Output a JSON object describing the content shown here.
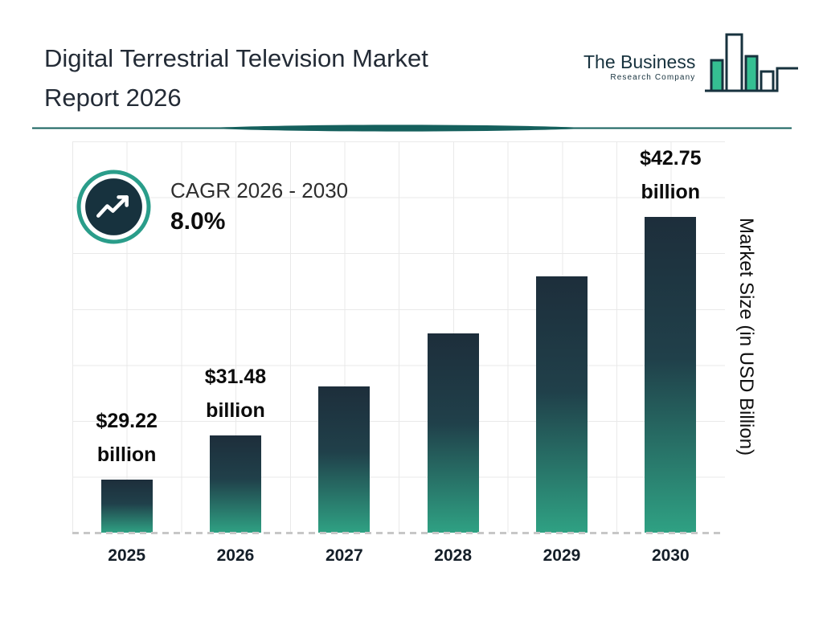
{
  "header": {
    "title_line1": "Digital Terrestrial Television Market",
    "title_line2": "Report 2026",
    "logo": {
      "name": "The Business",
      "subname": "Research Company"
    }
  },
  "cagr": {
    "label": "CAGR 2026 - 2030",
    "value": "8.0%"
  },
  "icons": {
    "cagr_badge": "trend-up-arrow-in-circle",
    "logo_mark": "bar-chart"
  },
  "chart_data": {
    "type": "bar",
    "title": "Digital Terrestrial Television Market Report 2026",
    "categories": [
      "2025",
      "2026",
      "2027",
      "2028",
      "2029",
      "2030"
    ],
    "values": [
      29.22,
      31.48,
      34.0,
      36.72,
      39.66,
      42.75
    ],
    "value_labels": [
      {
        "amount": "$29.22",
        "unit": "billion"
      },
      {
        "amount": "$31.48",
        "unit": "billion"
      },
      null,
      null,
      null,
      {
        "amount": "$42.75",
        "unit": "billion"
      }
    ],
    "xlabel": "",
    "ylabel": "Market Size (in USD Billion)",
    "unit": "USD Billion",
    "ylim": [
      26.5,
      46.6
    ],
    "grid": true,
    "legend": false
  },
  "colors": {
    "text_dark": "#232b36",
    "navy": "#17323e",
    "teal": "#2a9d8a",
    "logo_green": "#35bf92",
    "divider_teal": "#15605d",
    "bar_top": "#1d2e3b",
    "bar_bottom": "#2fa183",
    "grid": "#e9e9e9",
    "dash": "#c7c7c7"
  }
}
